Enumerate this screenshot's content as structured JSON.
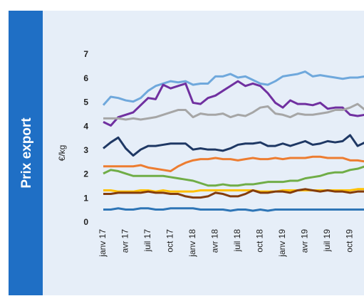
{
  "chart_data": {
    "type": "line",
    "title": "Prix export",
    "y_label": "€/kg",
    "categories": [
      "janv 17",
      null,
      null,
      "avr 17",
      null,
      null,
      "juil 17",
      null,
      null,
      "oct 17",
      null,
      null,
      "janv 18",
      null,
      null,
      "avr 18",
      null,
      null,
      "juil 18",
      null,
      null,
      "oct 18",
      null,
      null,
      "janv 19",
      null,
      null,
      "avr 19",
      null,
      null,
      "juil 19",
      null,
      null,
      "oct 19",
      null,
      null
    ],
    "ylim": [
      0,
      7
    ],
    "yticks": [
      0,
      1,
      2,
      3,
      4,
      5,
      6,
      7
    ],
    "grid": false,
    "series": [
      {
        "color": "#6fa8dc",
        "values": [
          4.9,
          5.25,
          5.2,
          5.1,
          5.05,
          5.2,
          5.5,
          5.7,
          5.8,
          5.9,
          5.85,
          5.9,
          5.75,
          5.8,
          5.8,
          6.1,
          6.1,
          6.2,
          6.05,
          6.1,
          5.95,
          5.8,
          5.75,
          5.9,
          6.1,
          6.15,
          6.2,
          6.3,
          6.1,
          6.15,
          6.1,
          6.05,
          6.0,
          6.05,
          6.05,
          6.1
        ]
      },
      {
        "color": "#7030a0",
        "values": [
          4.2,
          4.05,
          4.4,
          4.5,
          4.6,
          4.9,
          5.2,
          5.15,
          5.75,
          5.6,
          5.7,
          5.8,
          5.0,
          4.95,
          5.2,
          5.3,
          5.5,
          5.7,
          5.9,
          5.7,
          5.8,
          5.7,
          5.4,
          5.0,
          4.8,
          5.1,
          4.95,
          4.95,
          4.9,
          5.0,
          4.75,
          4.8,
          4.8,
          4.5,
          4.45,
          4.5
        ]
      },
      {
        "color": "#a6a6a6",
        "values": [
          4.35,
          4.35,
          4.35,
          4.3,
          4.35,
          4.3,
          4.35,
          4.4,
          4.5,
          4.6,
          4.7,
          4.7,
          4.4,
          4.55,
          4.5,
          4.5,
          4.55,
          4.4,
          4.5,
          4.45,
          4.6,
          4.8,
          4.85,
          4.55,
          4.5,
          4.4,
          4.55,
          4.5,
          4.5,
          4.55,
          4.6,
          4.7,
          4.7,
          4.8,
          4.95,
          4.7
        ]
      },
      {
        "color": "#1f3864",
        "values": [
          3.1,
          3.35,
          3.55,
          3.1,
          2.8,
          3.05,
          3.2,
          3.2,
          3.25,
          3.3,
          3.3,
          3.3,
          3.05,
          3.1,
          3.05,
          3.05,
          3.0,
          3.1,
          3.25,
          3.3,
          3.3,
          3.35,
          3.2,
          3.2,
          3.3,
          3.2,
          3.3,
          3.4,
          3.25,
          3.3,
          3.4,
          3.35,
          3.4,
          3.65,
          3.2,
          3.35
        ]
      },
      {
        "color": "#ed7d31",
        "values": [
          2.35,
          2.35,
          2.35,
          2.35,
          2.35,
          2.4,
          2.3,
          2.25,
          2.2,
          2.15,
          2.35,
          2.5,
          2.6,
          2.65,
          2.65,
          2.7,
          2.65,
          2.65,
          2.6,
          2.65,
          2.7,
          2.65,
          2.65,
          2.7,
          2.65,
          2.7,
          2.7,
          2.7,
          2.75,
          2.75,
          2.7,
          2.7,
          2.7,
          2.6,
          2.6,
          2.55
        ]
      },
      {
        "color": "#70ad47",
        "values": [
          2.05,
          2.2,
          2.15,
          2.05,
          1.95,
          1.95,
          1.95,
          1.95,
          1.95,
          1.9,
          1.85,
          1.8,
          1.75,
          1.65,
          1.55,
          1.55,
          1.6,
          1.55,
          1.55,
          1.6,
          1.6,
          1.65,
          1.7,
          1.7,
          1.7,
          1.75,
          1.75,
          1.85,
          1.9,
          1.95,
          2.05,
          2.1,
          2.1,
          2.2,
          2.25,
          2.35
        ]
      },
      {
        "color": "#ffc000",
        "values": [
          1.35,
          1.35,
          1.3,
          1.3,
          1.3,
          1.35,
          1.35,
          1.3,
          1.35,
          1.3,
          1.3,
          1.3,
          1.3,
          1.35,
          1.35,
          1.35,
          1.35,
          1.35,
          1.35,
          1.35,
          1.35,
          1.3,
          1.3,
          1.3,
          1.35,
          1.35,
          1.35,
          1.35,
          1.35,
          1.35,
          1.35,
          1.35,
          1.35,
          1.35,
          1.4,
          1.4
        ]
      },
      {
        "color": "#843c0c",
        "values": [
          1.2,
          1.2,
          1.25,
          1.25,
          1.25,
          1.25,
          1.3,
          1.25,
          1.25,
          1.2,
          1.2,
          1.1,
          1.05,
          1.05,
          1.1,
          1.25,
          1.2,
          1.1,
          1.1,
          1.2,
          1.35,
          1.25,
          1.25,
          1.3,
          1.3,
          1.25,
          1.35,
          1.4,
          1.35,
          1.3,
          1.35,
          1.3,
          1.3,
          1.25,
          1.3,
          1.3
        ]
      },
      {
        "color": "#2e75b6",
        "values": [
          0.55,
          0.55,
          0.6,
          0.55,
          0.55,
          0.6,
          0.6,
          0.55,
          0.55,
          0.6,
          0.6,
          0.6,
          0.6,
          0.55,
          0.55,
          0.55,
          0.55,
          0.5,
          0.55,
          0.55,
          0.5,
          0.55,
          0.5,
          0.55,
          0.55,
          0.55,
          0.55,
          0.55,
          0.55,
          0.55,
          0.55,
          0.55,
          0.55,
          0.55,
          0.55,
          0.55
        ]
      }
    ]
  }
}
